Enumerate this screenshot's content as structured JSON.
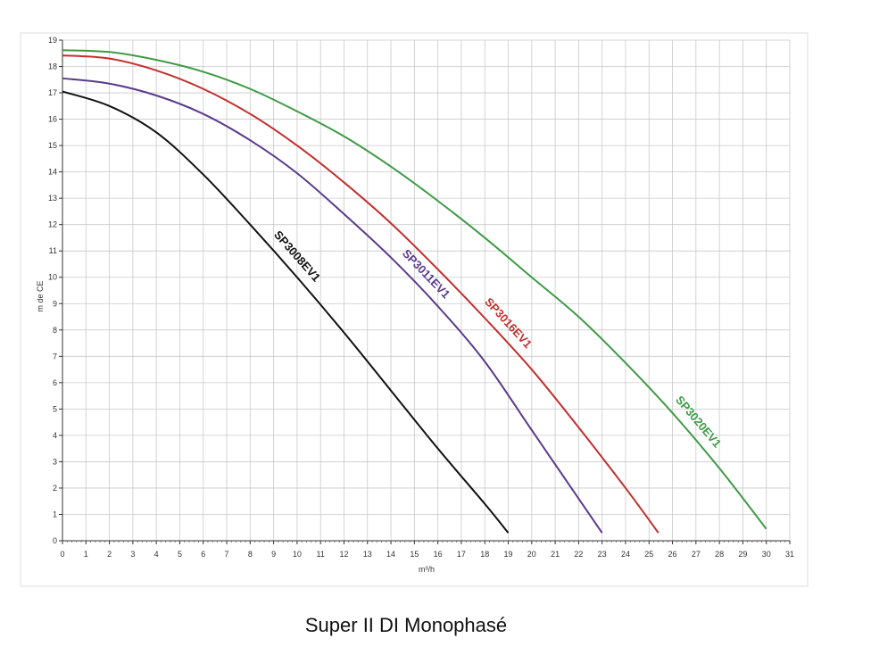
{
  "caption": "Super II DI Monophasé",
  "chart_data": {
    "type": "line",
    "xlabel": "m³/h",
    "ylabel": "m de CE",
    "xlim": [
      0,
      31
    ],
    "ylim": [
      0,
      19
    ],
    "x_ticks": [
      "0",
      "1",
      "2",
      "3",
      "4",
      "5",
      "6",
      "7",
      "8",
      "9",
      "10",
      "11",
      "12",
      "13",
      "14",
      "15",
      "16",
      "17",
      "18",
      "19",
      "20",
      "21",
      "22",
      "23",
      "24",
      "25",
      "26",
      "27",
      "28",
      "29",
      "30",
      "31"
    ],
    "y_ticks": [
      "0",
      "1",
      "2",
      "3",
      "4",
      "5",
      "6",
      "7",
      "8",
      "9",
      "10",
      "11",
      "12",
      "13",
      "14",
      "15",
      "16",
      "17",
      "18",
      "19"
    ],
    "grid": true,
    "series": [
      {
        "name": "SP3008EV1",
        "color": "#111111",
        "x": [
          0,
          2,
          4,
          6,
          8,
          10,
          12,
          14,
          16,
          18,
          19
        ],
        "y": [
          17.05,
          16.5,
          15.5,
          13.9,
          12.0,
          10.0,
          7.9,
          5.7,
          3.5,
          1.4,
          0.3
        ]
      },
      {
        "name": "SP3011EV1",
        "color": "#5a3a8c",
        "x": [
          0,
          2,
          4,
          6,
          8,
          10,
          12,
          14,
          16,
          18,
          20,
          22,
          23
        ],
        "y": [
          17.55,
          17.35,
          16.9,
          16.2,
          15.2,
          13.95,
          12.4,
          10.75,
          8.9,
          6.8,
          4.2,
          1.6,
          0.3
        ]
      },
      {
        "name": "SP3016EV1",
        "color": "#c0302e",
        "x": [
          0,
          2,
          4,
          6,
          8,
          10,
          12,
          14,
          16,
          18,
          20,
          22,
          24,
          25.4
        ],
        "y": [
          18.42,
          18.3,
          17.85,
          17.15,
          16.2,
          15.0,
          13.6,
          12.05,
          10.3,
          8.45,
          6.5,
          4.3,
          2.0,
          0.3
        ]
      },
      {
        "name": "SP3020EV1",
        "color": "#3f9a46",
        "x": [
          0,
          2,
          4,
          6,
          8,
          10,
          12,
          14,
          16,
          18,
          20,
          22,
          24,
          26,
          28,
          30
        ],
        "y": [
          18.62,
          18.55,
          18.25,
          17.8,
          17.15,
          16.3,
          15.35,
          14.2,
          12.9,
          11.5,
          10.0,
          8.5,
          6.75,
          4.85,
          2.75,
          0.45
        ]
      }
    ]
  }
}
